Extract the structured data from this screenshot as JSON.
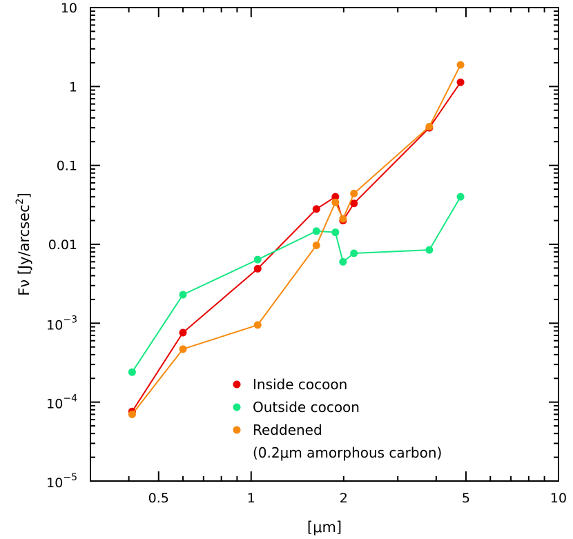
{
  "chart_data": {
    "type": "line",
    "xscale": "log",
    "yscale": "log",
    "xlim": [
      0.3,
      10
    ],
    "ylim": [
      1e-05,
      10
    ],
    "xlabel": "[μm]",
    "ylabel": "Fν [Jy/arcsec²]",
    "x_ticks": [
      {
        "value": 0.5,
        "label": "0.5"
      },
      {
        "value": 1,
        "label": "1"
      },
      {
        "value": 2,
        "label": "2"
      },
      {
        "value": 5,
        "label": "5"
      },
      {
        "value": 10,
        "label": "10"
      }
    ],
    "y_ticks": [
      {
        "value": 10,
        "label": "10"
      },
      {
        "value": 1,
        "label": "1"
      },
      {
        "value": 0.1,
        "label": "0.1"
      },
      {
        "value": 0.01,
        "label": "0.01"
      },
      {
        "value": 0.001,
        "base": "10",
        "exp": "−3"
      },
      {
        "value": 0.0001,
        "base": "10",
        "exp": "−4"
      },
      {
        "value": 1e-05,
        "base": "10",
        "exp": "−5"
      }
    ],
    "legend_position": "bottom-center",
    "legend_note": "(0.2μm amorphous carbon)",
    "series": [
      {
        "name": "Inside cocoon",
        "color": "#e80000",
        "x": [
          0.41,
          0.6,
          1.05,
          1.63,
          1.88,
          1.99,
          2.16,
          3.8,
          4.8
        ],
        "y": [
          7.6e-05,
          0.00076,
          0.0049,
          0.028,
          0.04,
          0.02,
          0.033,
          0.3,
          1.13
        ]
      },
      {
        "name": "Outside cocoon",
        "color": "#15e883",
        "x": [
          0.41,
          0.6,
          1.05,
          1.63,
          1.88,
          1.99,
          2.16,
          3.8,
          4.8
        ],
        "y": [
          0.00024,
          0.0023,
          0.0064,
          0.0147,
          0.0142,
          0.006,
          0.0077,
          0.0085,
          0.04
        ]
      },
      {
        "name": "Reddened",
        "color": "#f68a0f",
        "x": [
          0.41,
          0.6,
          1.05,
          1.63,
          1.88,
          1.99,
          2.16,
          3.8,
          4.8
        ],
        "y": [
          7e-05,
          0.00047,
          0.00095,
          0.0097,
          0.034,
          0.021,
          0.044,
          0.31,
          1.88
        ]
      }
    ]
  }
}
